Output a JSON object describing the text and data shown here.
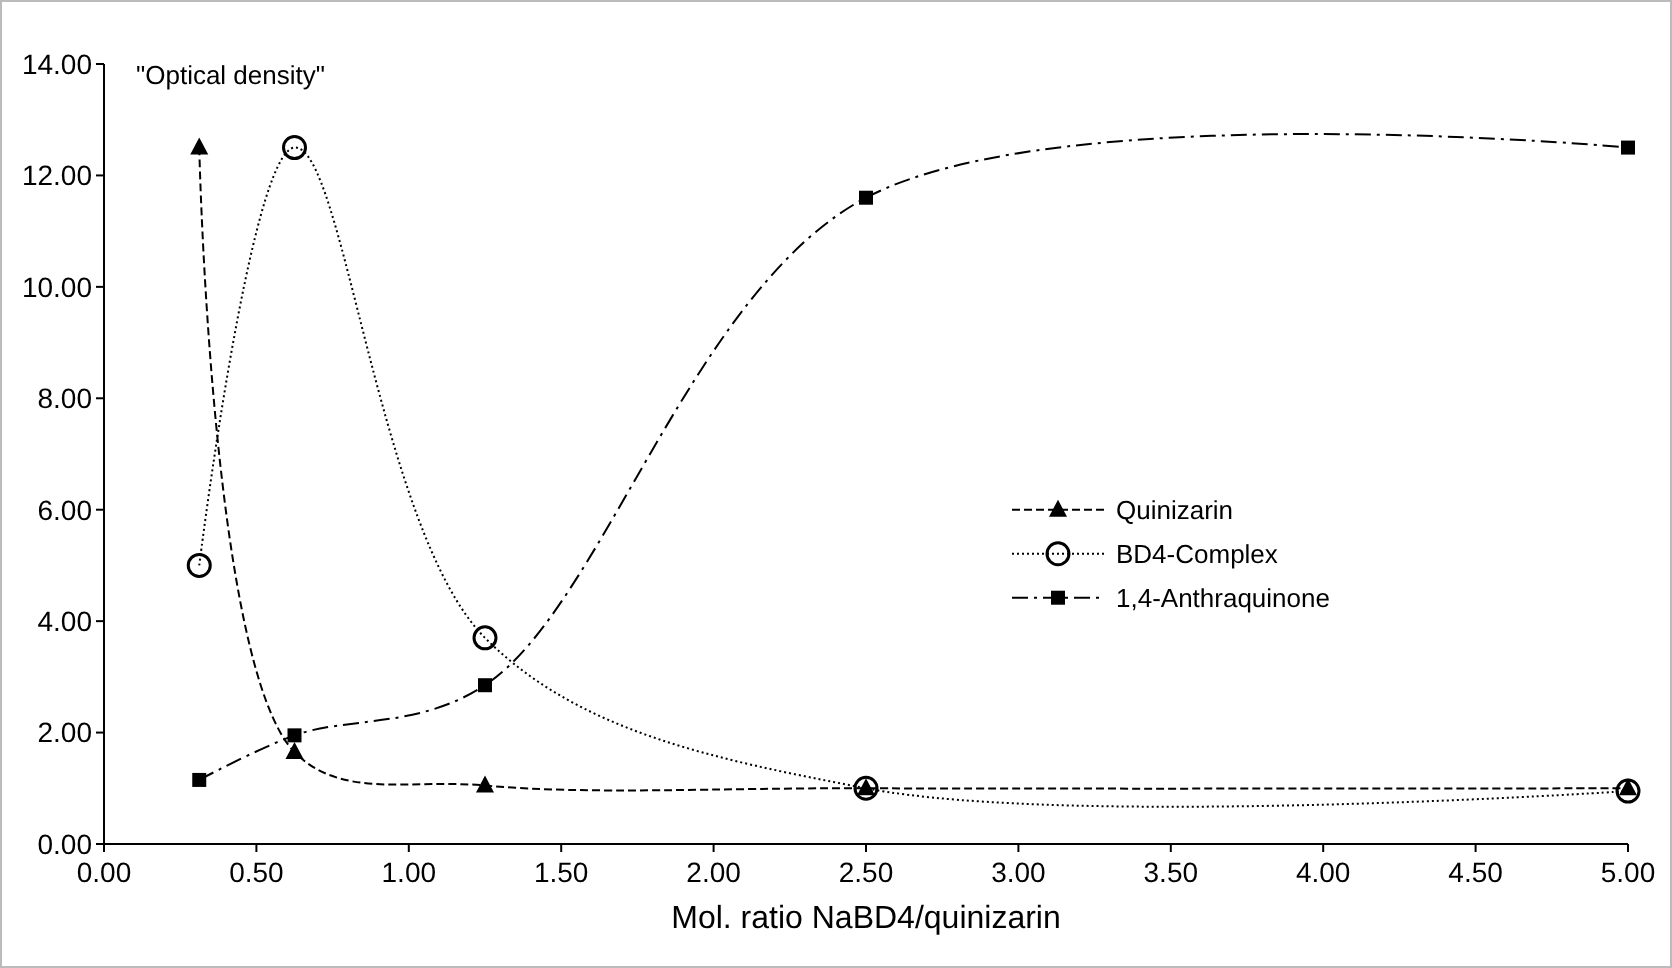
{
  "chart_data": {
    "type": "line",
    "ylabel": "\"Optical density\"",
    "xlabel": "Mol. ratio NaBD4/quinizarin",
    "x": [
      0.3125,
      0.625,
      1.25,
      2.5,
      5
    ],
    "series": [
      {
        "name": "Quinizarin",
        "color": "#000000",
        "values": [
          12.5,
          1.65,
          1.05,
          1.0,
          1.0
        ],
        "marker": "triangle",
        "line_style": "dashed"
      },
      {
        "name": "BD4-Complex",
        "color": "#000000",
        "values": [
          5.0,
          12.5,
          3.7,
          1.0,
          0.95
        ],
        "marker": "circle",
        "line_style": "dotted"
      },
      {
        "name": "1,4-Anthraquinone",
        "color": "#000000",
        "values": [
          1.15,
          1.95,
          2.85,
          11.6,
          12.5
        ],
        "marker": "square",
        "line_style": "dashdot"
      }
    ],
    "xlim": [
      0,
      5
    ],
    "xticks": [
      {
        "value": 0,
        "label": "0.00"
      },
      {
        "value": 0.5,
        "label": "0.50"
      },
      {
        "value": 1,
        "label": "1.00"
      },
      {
        "value": 1.5,
        "label": "1.50"
      },
      {
        "value": 2,
        "label": "2.00"
      },
      {
        "value": 2.5,
        "label": "2.50"
      },
      {
        "value": 3,
        "label": "3.00"
      },
      {
        "value": 3.5,
        "label": "3.50"
      },
      {
        "value": 4,
        "label": "4.00"
      },
      {
        "value": 4.5,
        "label": "4.50"
      },
      {
        "value": 5,
        "label": "5.00"
      }
    ],
    "ylim": [
      0,
      14
    ],
    "yticks": [
      {
        "value": 0,
        "label": "0.00"
      },
      {
        "value": 2,
        "label": "2.00"
      },
      {
        "value": 4,
        "label": "4.00"
      },
      {
        "value": 6,
        "label": "6.00"
      },
      {
        "value": 8,
        "label": "8.00"
      },
      {
        "value": 10,
        "label": "10.00"
      },
      {
        "value": 12,
        "label": "12.00"
      },
      {
        "value": 14,
        "label": "14.00"
      }
    ],
    "legend": "right",
    "grid": false
  }
}
